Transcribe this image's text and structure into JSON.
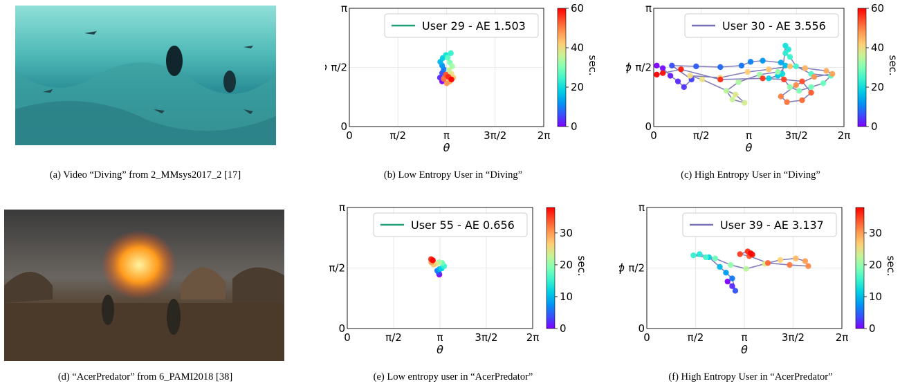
{
  "captions": {
    "a": "(a)  Video “Diving” from 2_MMsys2017_2 [17]",
    "b": "(b)  Low Entropy User in “Diving”",
    "c": "(c)  High Entropy User in “Diving”",
    "d": "(d)  “AcerPredator” from 6_PAMI2018 [38]",
    "e": "(e)  Low entropy user in “AcerPredator”",
    "f": "(f)  High Entropy User in “AcerPredator”"
  },
  "colors": {
    "low_entropy_line": "#1f9e77",
    "high_entropy_line": "#7570b3"
  },
  "chart_data": [
    {
      "id": "b",
      "type": "scatter",
      "legend": "User 29 - AE 1.503",
      "legend_position": "top-right",
      "xlabel": "θ",
      "ylabel": "ϕ",
      "xticks": [
        "0",
        "π/2",
        "π",
        "3π/2",
        "2π"
      ],
      "yticks": [
        "0",
        "π/2",
        "π"
      ],
      "xlim": [
        0,
        6.283
      ],
      "ylim": [
        0,
        3.1416
      ],
      "colorbar": {
        "label": "sec.",
        "ticks": [
          "0",
          "20",
          "40",
          "60"
        ],
        "range": [
          0,
          60
        ]
      },
      "grid": true,
      "series": [
        {
          "points": [
            [
              3.0,
              1.2,
              0
            ],
            [
              2.93,
              1.3,
              3
            ],
            [
              3.0,
              1.42,
              6
            ],
            [
              3.05,
              1.52,
              9
            ],
            [
              3.0,
              1.62,
              12
            ],
            [
              2.94,
              1.72,
              15
            ],
            [
              3.02,
              1.82,
              18
            ],
            [
              3.12,
              1.9,
              21
            ],
            [
              3.28,
              1.95,
              24
            ],
            [
              3.18,
              1.83,
              27
            ],
            [
              3.25,
              1.7,
              30
            ],
            [
              3.32,
              1.6,
              33
            ],
            [
              3.22,
              1.5,
              36
            ],
            [
              3.3,
              1.4,
              39
            ],
            [
              3.36,
              1.3,
              42
            ],
            [
              3.25,
              1.2,
              45
            ],
            [
              3.15,
              1.15,
              48
            ],
            [
              3.05,
              1.27,
              51
            ],
            [
              3.12,
              1.38,
              54
            ],
            [
              3.2,
              1.32,
              57
            ],
            [
              3.3,
              1.25,
              60
            ]
          ]
        }
      ]
    },
    {
      "id": "c",
      "type": "scatter",
      "legend": "User 30 - AE 3.556",
      "legend_position": "top-right",
      "xlabel": "θ",
      "ylabel": "ϕ",
      "xticks": [
        "0",
        "π/2",
        "π",
        "3π/2",
        "2π"
      ],
      "yticks": [
        "0",
        "π/2",
        "π"
      ],
      "xlim": [
        0,
        6.283
      ],
      "ylim": [
        0,
        3.1416
      ],
      "colorbar": {
        "label": "sec.",
        "ticks": [
          "0",
          "20",
          "40",
          "60"
        ],
        "range": [
          0,
          60
        ]
      },
      "grid": true,
      "series": [
        {
          "points": [
            [
              0.1,
              1.62,
              0
            ],
            [
              0.3,
              1.55,
              1
            ],
            [
              0.55,
              1.35,
              2
            ],
            [
              0.8,
              1.2,
              3
            ],
            [
              1.0,
              1.05,
              4
            ],
            [
              1.25,
              1.25,
              5
            ],
            [
              0.6,
              1.62,
              6
            ],
            [
              1.4,
              1.6,
              7
            ],
            [
              2.2,
              1.58,
              8
            ],
            [
              2.9,
              1.62,
              9
            ],
            [
              3.2,
              1.72,
              10
            ],
            [
              3.6,
              1.75,
              12
            ],
            [
              4.2,
              1.7,
              14
            ],
            [
              4.35,
              1.62,
              16
            ],
            [
              4.1,
              1.35,
              18
            ],
            [
              3.8,
              1.28,
              19
            ],
            [
              4.25,
              1.4,
              20
            ],
            [
              4.35,
              2.15,
              21
            ],
            [
              4.45,
              2.05,
              22
            ],
            [
              4.35,
              1.95,
              23
            ],
            [
              4.5,
              1.85,
              24
            ],
            [
              4.7,
              1.6,
              25
            ],
            [
              5.2,
              1.4,
              26
            ],
            [
              5.85,
              1.35,
              27
            ],
            [
              5.6,
              1.15,
              28
            ],
            [
              5.2,
              1.05,
              29
            ],
            [
              4.8,
              0.95,
              30
            ],
            [
              4.5,
              1.05,
              31
            ],
            [
              4.1,
              1.45,
              32
            ],
            [
              3.5,
              1.38,
              33
            ],
            [
              2.8,
              1.18,
              34
            ],
            [
              2.4,
              0.95,
              35
            ],
            [
              2.6,
              0.72,
              36
            ],
            [
              3.0,
              0.63,
              37
            ],
            [
              2.7,
              0.85,
              38
            ],
            [
              1.6,
              1.25,
              39
            ],
            [
              1.2,
              1.35,
              40
            ],
            [
              2.2,
              1.3,
              41
            ],
            [
              3.1,
              1.45,
              42
            ],
            [
              3.8,
              1.52,
              43
            ],
            [
              4.5,
              1.6,
              44
            ],
            [
              5.0,
              1.55,
              45
            ],
            [
              5.7,
              1.48,
              46
            ],
            [
              5.9,
              1.4,
              47
            ],
            [
              5.3,
              1.32,
              48
            ],
            [
              4.7,
              1.1,
              49
            ],
            [
              4.2,
              0.8,
              50
            ],
            [
              4.4,
              0.65,
              51
            ],
            [
              4.9,
              0.7,
              52
            ],
            [
              5.2,
              0.9,
              53
            ],
            [
              4.9,
              1.2,
              54
            ],
            [
              4.3,
              1.25,
              55
            ],
            [
              3.6,
              1.28,
              56
            ],
            [
              2.2,
              1.25,
              57
            ],
            [
              0.9,
              1.52,
              58
            ],
            [
              0.3,
              1.42,
              59
            ],
            [
              0.1,
              1.38,
              60
            ]
          ]
        }
      ]
    },
    {
      "id": "e",
      "type": "scatter",
      "legend": "User 55 - AE 0.656",
      "legend_position": "top-right",
      "xlabel": "θ",
      "ylabel": "ϕ",
      "xticks": [
        "0",
        "π/2",
        "π",
        "3π/2",
        "2π"
      ],
      "yticks": [
        "0",
        "π/2",
        "π"
      ],
      "xlim": [
        0,
        6.283
      ],
      "ylim": [
        0,
        3.1416
      ],
      "colorbar": {
        "label": "sec.",
        "ticks": [
          "0",
          "10",
          "20",
          "30"
        ],
        "range": [
          0,
          38
        ]
      },
      "grid": true,
      "series": [
        {
          "points": [
            [
              3.12,
              1.4,
              0
            ],
            [
              3.1,
              1.45,
              3
            ],
            [
              3.05,
              1.5,
              6
            ],
            [
              3.12,
              1.54,
              9
            ],
            [
              3.2,
              1.56,
              12
            ],
            [
              3.28,
              1.62,
              15
            ],
            [
              3.22,
              1.7,
              18
            ],
            [
              3.12,
              1.72,
              21
            ],
            [
              3.02,
              1.68,
              24
            ],
            [
              2.92,
              1.66,
              27
            ],
            [
              2.85,
              1.72,
              30
            ],
            [
              2.88,
              1.78,
              33
            ],
            [
              2.84,
              1.8,
              36
            ],
            [
              2.9,
              1.77,
              38
            ]
          ]
        }
      ]
    },
    {
      "id": "f",
      "type": "scatter",
      "legend": "User 39 - AE 3.137",
      "legend_position": "top-right",
      "xlabel": "θ",
      "ylabel": "ϕ",
      "xticks": [
        "0",
        "π/2",
        "π",
        "3π/2",
        "2π"
      ],
      "yticks": [
        "0",
        "π/2",
        "π"
      ],
      "xlim": [
        0,
        6.283
      ],
      "ylim": [
        0,
        3.1416
      ],
      "colorbar": {
        "label": "sec.",
        "ticks": [
          "0",
          "10",
          "20",
          "30"
        ],
        "range": [
          0,
          38
        ]
      },
      "grid": true,
      "series": [
        {
          "points": [
            [
              2.6,
              1.22,
              0
            ],
            [
              2.75,
              1.1,
              2
            ],
            [
              2.85,
              0.98,
              4
            ],
            [
              2.75,
              1.3,
              6
            ],
            [
              2.55,
              1.45,
              8
            ],
            [
              2.35,
              1.6,
              10
            ],
            [
              2.0,
              1.85,
              12
            ],
            [
              1.7,
              1.93,
              14
            ],
            [
              1.5,
              1.9,
              15
            ],
            [
              1.9,
              1.85,
              16
            ],
            [
              2.2,
              1.82,
              18
            ],
            [
              2.7,
              1.65,
              20
            ],
            [
              3.2,
              1.55,
              22
            ],
            [
              3.8,
              1.68,
              24
            ],
            [
              4.3,
              1.78,
              26
            ],
            [
              4.8,
              1.82,
              28
            ],
            [
              5.1,
              1.75,
              30
            ],
            [
              5.2,
              1.62,
              31
            ],
            [
              4.6,
              1.65,
              32
            ],
            [
              3.9,
              1.7,
              33
            ],
            [
              3.3,
              1.88,
              34
            ],
            [
              3.0,
              1.93,
              35
            ],
            [
              3.25,
              2.0,
              36
            ],
            [
              3.4,
              1.92,
              37
            ],
            [
              3.35,
              1.95,
              38
            ]
          ]
        }
      ]
    }
  ]
}
